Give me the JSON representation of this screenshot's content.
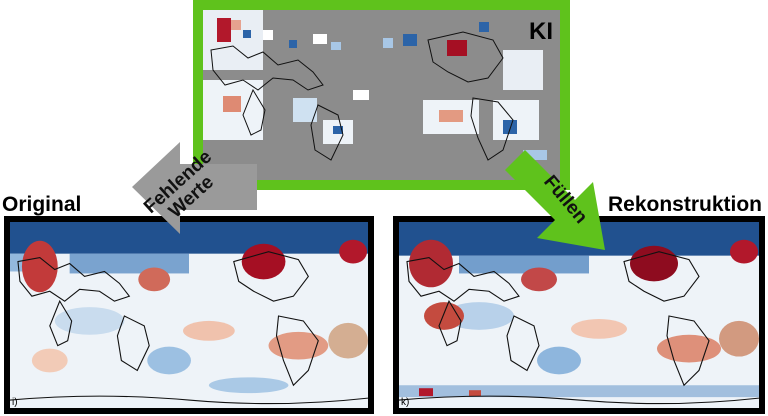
{
  "labels": {
    "original": "Original",
    "reconstruction": "Rekonstruktion",
    "ai": "KI",
    "missing_line1": "Fehlende",
    "missing_line2": "Werte",
    "fill": "Füllen"
  },
  "panel_tags": {
    "original": "i)",
    "reconstruction": "k)"
  },
  "colors": {
    "ai_border": "#5fc21c",
    "missing_gray": "#8c8c8c",
    "warm": "#b2182b",
    "cool": "#1f4e9a",
    "arrow_gray": "#9a9a9a",
    "arrow_green": "#5fc21c"
  }
}
